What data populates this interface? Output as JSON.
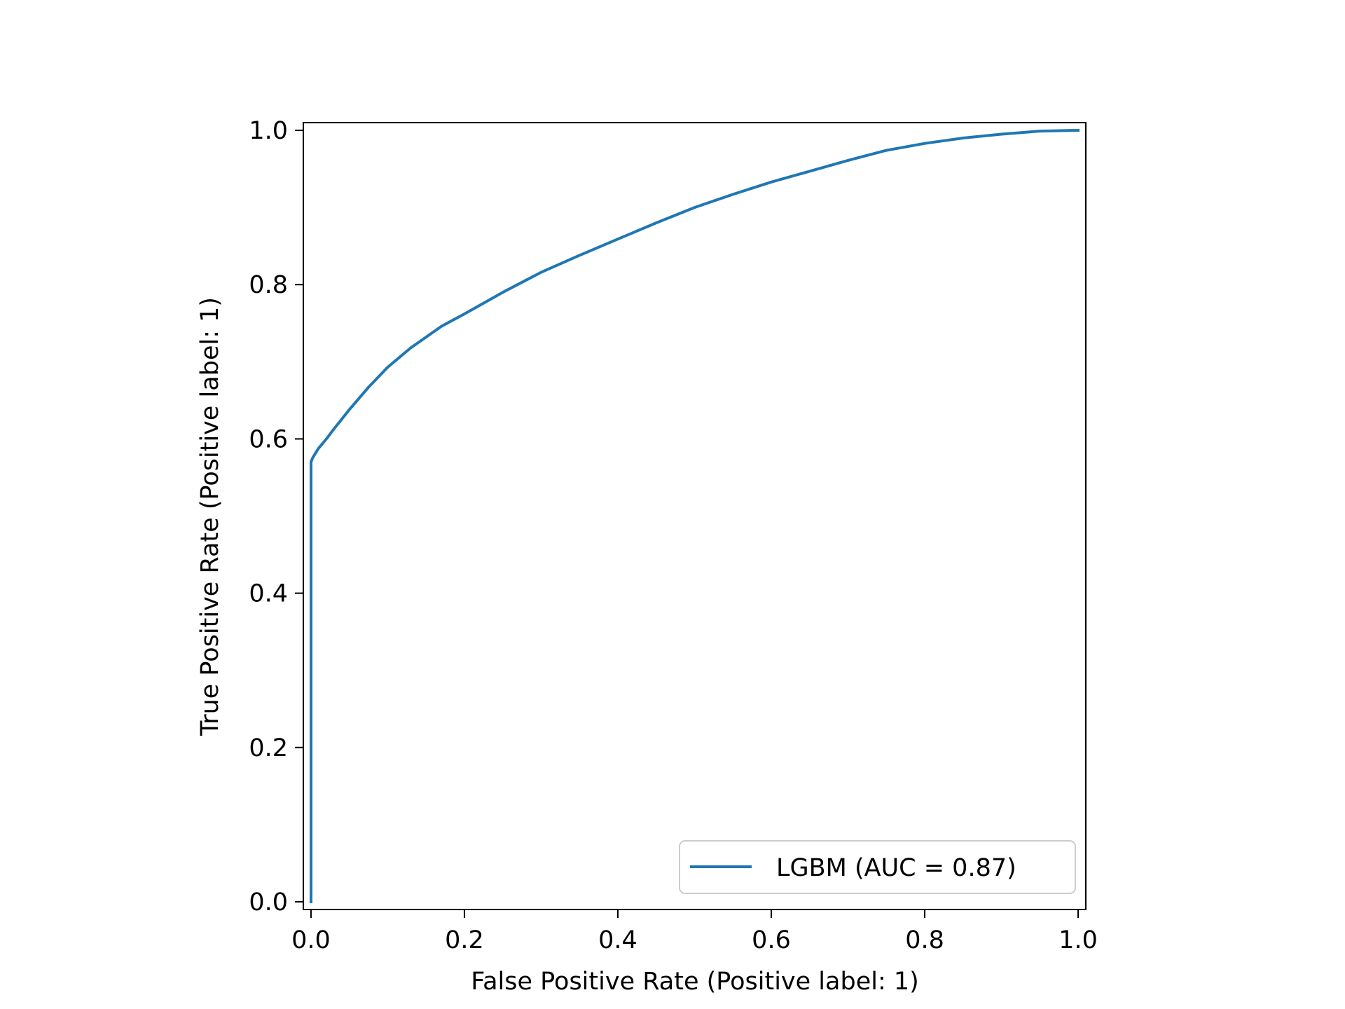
{
  "chart_data": {
    "type": "line",
    "title": "",
    "xlabel": "False Positive Rate (Positive label: 1)",
    "ylabel": "True Positive Rate (Positive label: 1)",
    "xlim": [
      -0.01,
      1.01
    ],
    "ylim": [
      -0.01,
      1.01
    ],
    "grid": false,
    "legend_position": "lower-right",
    "x_ticks": [
      {
        "value": 0.0,
        "label": "0.0"
      },
      {
        "value": 0.2,
        "label": "0.2"
      },
      {
        "value": 0.4,
        "label": "0.4"
      },
      {
        "value": 0.6,
        "label": "0.6"
      },
      {
        "value": 0.8,
        "label": "0.8"
      },
      {
        "value": 1.0,
        "label": "1.0"
      }
    ],
    "y_ticks": [
      {
        "value": 0.0,
        "label": "0.0"
      },
      {
        "value": 0.2,
        "label": "0.2"
      },
      {
        "value": 0.4,
        "label": "0.4"
      },
      {
        "value": 0.6,
        "label": "0.6"
      },
      {
        "value": 0.8,
        "label": "0.8"
      },
      {
        "value": 1.0,
        "label": "1.0"
      }
    ],
    "series": [
      {
        "name": "LGBM (AUC = 0.87)",
        "color": "#1f77b4",
        "x": [
          0.0,
          0.0,
          0.0,
          0.0,
          0.002,
          0.005,
          0.01,
          0.02,
          0.03,
          0.05,
          0.075,
          0.1,
          0.13,
          0.17,
          0.2,
          0.25,
          0.3,
          0.35,
          0.4,
          0.45,
          0.5,
          0.55,
          0.6,
          0.65,
          0.7,
          0.75,
          0.8,
          0.85,
          0.9,
          0.95,
          1.0
        ],
        "y": [
          0.0,
          0.3,
          0.55,
          0.57,
          0.575,
          0.58,
          0.588,
          0.6,
          0.613,
          0.638,
          0.667,
          0.693,
          0.718,
          0.746,
          0.762,
          0.79,
          0.816,
          0.838,
          0.859,
          0.88,
          0.9,
          0.917,
          0.933,
          0.947,
          0.961,
          0.974,
          0.983,
          0.99,
          0.995,
          0.999,
          1.0
        ]
      }
    ]
  }
}
